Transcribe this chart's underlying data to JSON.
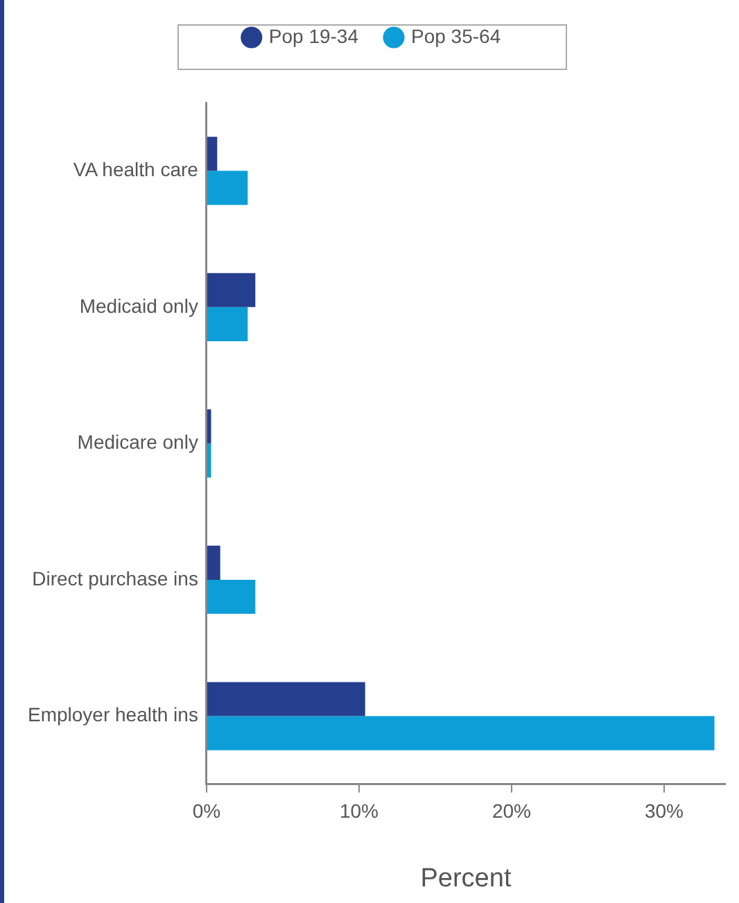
{
  "chart_data": {
    "type": "bar",
    "orientation": "horizontal",
    "xlabel": "Percent",
    "categories": [
      "VA health care",
      "Medicaid only",
      "Medicare only",
      "Direct purchase ins",
      "Employer health ins"
    ],
    "series": [
      {
        "name": "Pop 19-34",
        "color": "#253f8e",
        "values": [
          0.7,
          3.2,
          0.3,
          0.9,
          10.4
        ]
      },
      {
        "name": "Pop 35-64",
        "color": "#0d9ed8",
        "values": [
          2.7,
          2.7,
          0.3,
          3.2,
          33.3
        ]
      }
    ],
    "xlim": [
      0,
      34
    ],
    "xticks": [
      {
        "value": 0,
        "label": "0%"
      },
      {
        "value": 10,
        "label": "10%"
      },
      {
        "value": 20,
        "label": "20%"
      },
      {
        "value": 30,
        "label": "30%"
      }
    ],
    "grid": false,
    "legend": "top"
  }
}
